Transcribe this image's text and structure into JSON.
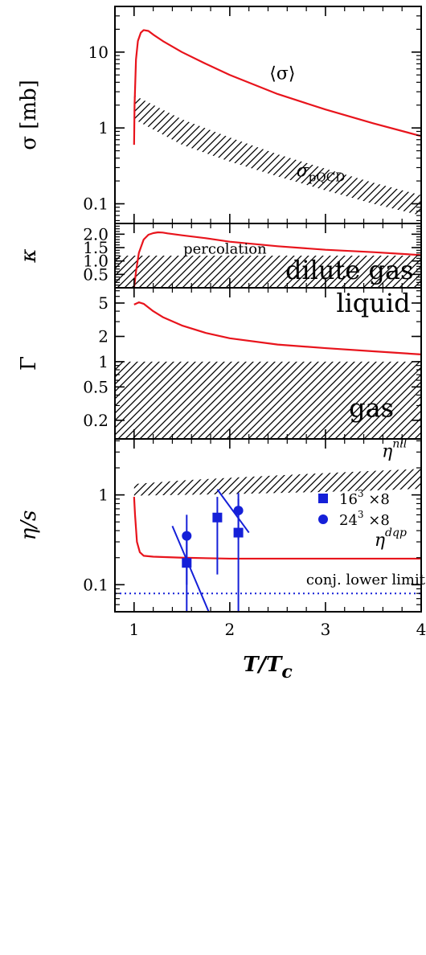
{
  "chart_data": {
    "type": "line",
    "shared_x": {
      "label": "T/T",
      "label_sub": "c",
      "lim": [
        0.8,
        4.0
      ],
      "ticks": [
        1,
        2,
        3,
        4
      ],
      "tick_labels": [
        "1",
        "2",
        "3",
        "4"
      ]
    },
    "panels": [
      {
        "id": "sigma",
        "ylabel": "σ  [mb]",
        "yscale": "log",
        "ylim": [
          0.055,
          40
        ],
        "yticks": [
          0.1,
          1,
          10
        ],
        "ytick_labels": [
          "0.1",
          "1",
          "10"
        ],
        "curve": {
          "name": "⟨σ⟩",
          "color": "#e8141c",
          "x": [
            1.0,
            1.005,
            1.02,
            1.04,
            1.07,
            1.1,
            1.15,
            1.2,
            1.3,
            1.5,
            1.75,
            2.0,
            2.5,
            3.0,
            3.5,
            4.0
          ],
          "y": [
            0.6,
            2.0,
            8.0,
            14.0,
            18.0,
            19.5,
            19.0,
            17.0,
            14.0,
            10.0,
            7.0,
            5.0,
            2.8,
            1.75,
            1.15,
            0.78
          ]
        },
        "band": {
          "name": "σ_pQCD",
          "x": [
            1.0,
            1.5,
            2.0,
            2.5,
            3.0,
            3.5,
            4.0
          ],
          "upper": [
            2.7,
            1.3,
            0.75,
            0.45,
            0.29,
            0.19,
            0.13
          ],
          "lower": [
            1.3,
            0.6,
            0.36,
            0.23,
            0.15,
            0.1,
            0.07
          ]
        },
        "annotations": [
          {
            "text": "⟨σ⟩",
            "x": 2.55,
            "y": 4.4
          },
          {
            "text": "σ",
            "sub": "pQCD",
            "x": 2.95,
            "y": 0.23
          }
        ]
      },
      {
        "id": "kappa",
        "ylabel": "κ",
        "yscale": "linear",
        "ylim": [
          0,
          2.4
        ],
        "yticks": [
          0.5,
          1.0,
          1.5,
          2.0
        ],
        "ytick_labels": [
          "0.5",
          "1.0",
          "1.5",
          "2.0"
        ],
        "curve": {
          "color": "#e8141c",
          "x": [
            1.0,
            1.02,
            1.05,
            1.1,
            1.15,
            1.2,
            1.25,
            1.3,
            1.35,
            1.5,
            1.75,
            2.0,
            2.5,
            3.0,
            3.5,
            4.0
          ],
          "y": [
            0.0,
            0.6,
            1.3,
            1.8,
            1.98,
            2.04,
            2.07,
            2.06,
            2.03,
            1.96,
            1.85,
            1.72,
            1.55,
            1.42,
            1.33,
            1.22
          ]
        },
        "band": {
          "x": [
            0.8,
            4.0
          ],
          "upper": [
            1.2,
            1.2
          ],
          "lower": [
            0,
            0
          ]
        },
        "annotations": [
          {
            "text": "percolation",
            "x": 1.95,
            "y": 1.28
          },
          {
            "text": "dilute gas",
            "x": 3.25,
            "y": 0.33
          }
        ]
      },
      {
        "id": "gamma",
        "ylabel": "Γ",
        "yscale": "log",
        "ylim": [
          0.12,
          7.6
        ],
        "yticks": [
          0.2,
          0.5,
          1,
          2,
          5
        ],
        "ytick_labels": [
          "0.2",
          "0.5",
          "1",
          "2",
          "5"
        ],
        "curve": {
          "color": "#e8141c",
          "x": [
            1.0,
            1.05,
            1.1,
            1.2,
            1.3,
            1.5,
            1.75,
            2.0,
            2.5,
            3.0,
            3.5,
            4.0
          ],
          "y": [
            4.8,
            5.1,
            4.9,
            4.0,
            3.4,
            2.7,
            2.2,
            1.9,
            1.6,
            1.45,
            1.33,
            1.22
          ]
        },
        "band": {
          "x": [
            0.8,
            4.0
          ],
          "upper": [
            1.0,
            1.0
          ],
          "lower": [
            0.12,
            0.12
          ]
        },
        "annotations": [
          {
            "text": "liquid",
            "x": 3.5,
            "y": 3.9
          },
          {
            "text": "gas",
            "x": 3.48,
            "y": 0.22
          }
        ]
      },
      {
        "id": "eta_s",
        "ylabel": "η/s",
        "yscale": "log",
        "ylim": [
          0.05,
          4.2
        ],
        "yticks": [
          0.1,
          1
        ],
        "ytick_labels": [
          "0.1",
          "1"
        ],
        "curve": {
          "name": "η^dqp",
          "color": "#e8141c",
          "x": [
            1.0,
            1.01,
            1.03,
            1.06,
            1.1,
            1.2,
            1.5,
            2.0,
            3.0,
            4.0
          ],
          "y": [
            0.95,
            0.6,
            0.3,
            0.23,
            0.21,
            0.205,
            0.2,
            0.195,
            0.195,
            0.195
          ]
        },
        "band": {
          "name": "η^nll",
          "x": [
            1.0,
            1.5,
            2.0,
            2.5,
            3.0,
            3.5,
            4.0
          ],
          "upper": [
            1.32,
            1.45,
            1.55,
            1.65,
            1.75,
            1.85,
            1.95
          ],
          "lower": [
            0.98,
            1.0,
            1.02,
            1.05,
            1.08,
            1.12,
            1.17
          ]
        },
        "lower_limit": {
          "name": "conj. lower limit",
          "y": 0.08,
          "color": "#1520d8"
        },
        "series": [
          {
            "name": "16",
            "sup": "3",
            "suffix": " ×8",
            "marker": "square",
            "color": "#1520d8",
            "points": [
              {
                "x": 1.55,
                "y": 0.175,
                "ylo": 0.05,
                "yhi": 0.33
              },
              {
                "x": 1.87,
                "y": 0.56,
                "ylo": 0.13,
                "yhi": 0.95
              },
              {
                "x": 2.09,
                "y": 0.38,
                "ylo": 0.05,
                "yhi": 0.9
              }
            ]
          },
          {
            "name": "24",
            "sup": "3",
            "suffix": " ×8",
            "marker": "circle",
            "color": "#1520d8",
            "points": [
              {
                "x": 1.55,
                "y": 0.35,
                "ylo": 0.1,
                "yhi": 0.6
              },
              {
                "x": 2.09,
                "y": 0.67,
                "ylo": 0.32,
                "yhi": 1.05
              }
            ]
          }
        ],
        "fit_lines": [
          {
            "x": [
              1.4,
              1.78
            ],
            "y": [
              0.45,
              0.05
            ]
          },
          {
            "x": [
              1.87,
              2.2
            ],
            "y": [
              1.15,
              0.38
            ]
          }
        ],
        "annotations": [
          {
            "text": "η",
            "sup": "nll",
            "x": 3.72,
            "y": 2.65
          },
          {
            "text": "η",
            "sup": "dqp",
            "x": 3.68,
            "y": 0.27
          },
          {
            "text": "conj. lower limit",
            "x": 3.42,
            "y": 0.101
          }
        ]
      }
    ]
  }
}
